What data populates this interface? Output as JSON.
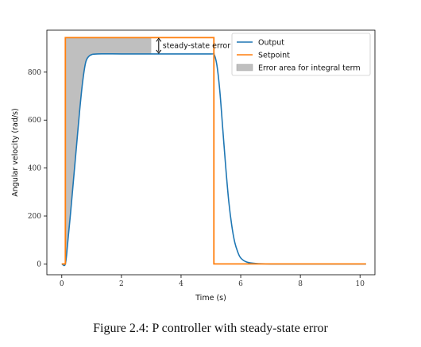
{
  "caption": "Figure 2.4: P controller with steady-state error",
  "chart_data": {
    "type": "line",
    "title": "",
    "xlabel": "Time (s)",
    "ylabel": "Angular velocity (rad/s)",
    "xlim": [
      -0.5,
      10.5
    ],
    "ylim": [
      -45,
      975
    ],
    "xticks": [
      0,
      2,
      4,
      6,
      8,
      10
    ],
    "yticks": [
      0,
      200,
      400,
      600,
      800
    ],
    "grid": false,
    "legend_position": "top-right",
    "series": [
      {
        "name": "Output",
        "color": "#1f77b4",
        "points": [
          [
            0.0,
            0
          ],
          [
            0.12,
            0
          ],
          [
            0.2,
            90
          ],
          [
            0.3,
            220
          ],
          [
            0.4,
            360
          ],
          [
            0.5,
            500
          ],
          [
            0.6,
            640
          ],
          [
            0.7,
            760
          ],
          [
            0.8,
            840
          ],
          [
            0.9,
            865
          ],
          [
            1.0,
            873
          ],
          [
            1.2,
            876
          ],
          [
            2.0,
            876
          ],
          [
            3.0,
            876
          ],
          [
            4.0,
            876
          ],
          [
            5.0,
            876
          ],
          [
            5.1,
            876
          ],
          [
            5.2,
            830
          ],
          [
            5.3,
            720
          ],
          [
            5.4,
            560
          ],
          [
            5.5,
            400
          ],
          [
            5.6,
            260
          ],
          [
            5.7,
            160
          ],
          [
            5.8,
            90
          ],
          [
            5.9,
            50
          ],
          [
            6.0,
            25
          ],
          [
            6.2,
            8
          ],
          [
            6.5,
            2
          ],
          [
            7.0,
            0
          ],
          [
            8.0,
            0
          ],
          [
            9.0,
            0
          ],
          [
            10.2,
            0
          ]
        ]
      },
      {
        "name": "Setpoint",
        "color": "#ff7f0e",
        "points": [
          [
            0.0,
            0
          ],
          [
            0.12,
            0
          ],
          [
            0.12,
            944
          ],
          [
            5.1,
            944
          ],
          [
            5.1,
            0
          ],
          [
            10.2,
            0
          ]
        ]
      }
    ],
    "fill_area": {
      "name": "Error area for integral term",
      "color": "#bfbfbf",
      "x_range": [
        0.12,
        3.0
      ],
      "between": [
        "Setpoint",
        "Output"
      ]
    },
    "annotation": {
      "text": "steady-state error",
      "x": 3.25,
      "from": 876,
      "to": 944
    }
  }
}
